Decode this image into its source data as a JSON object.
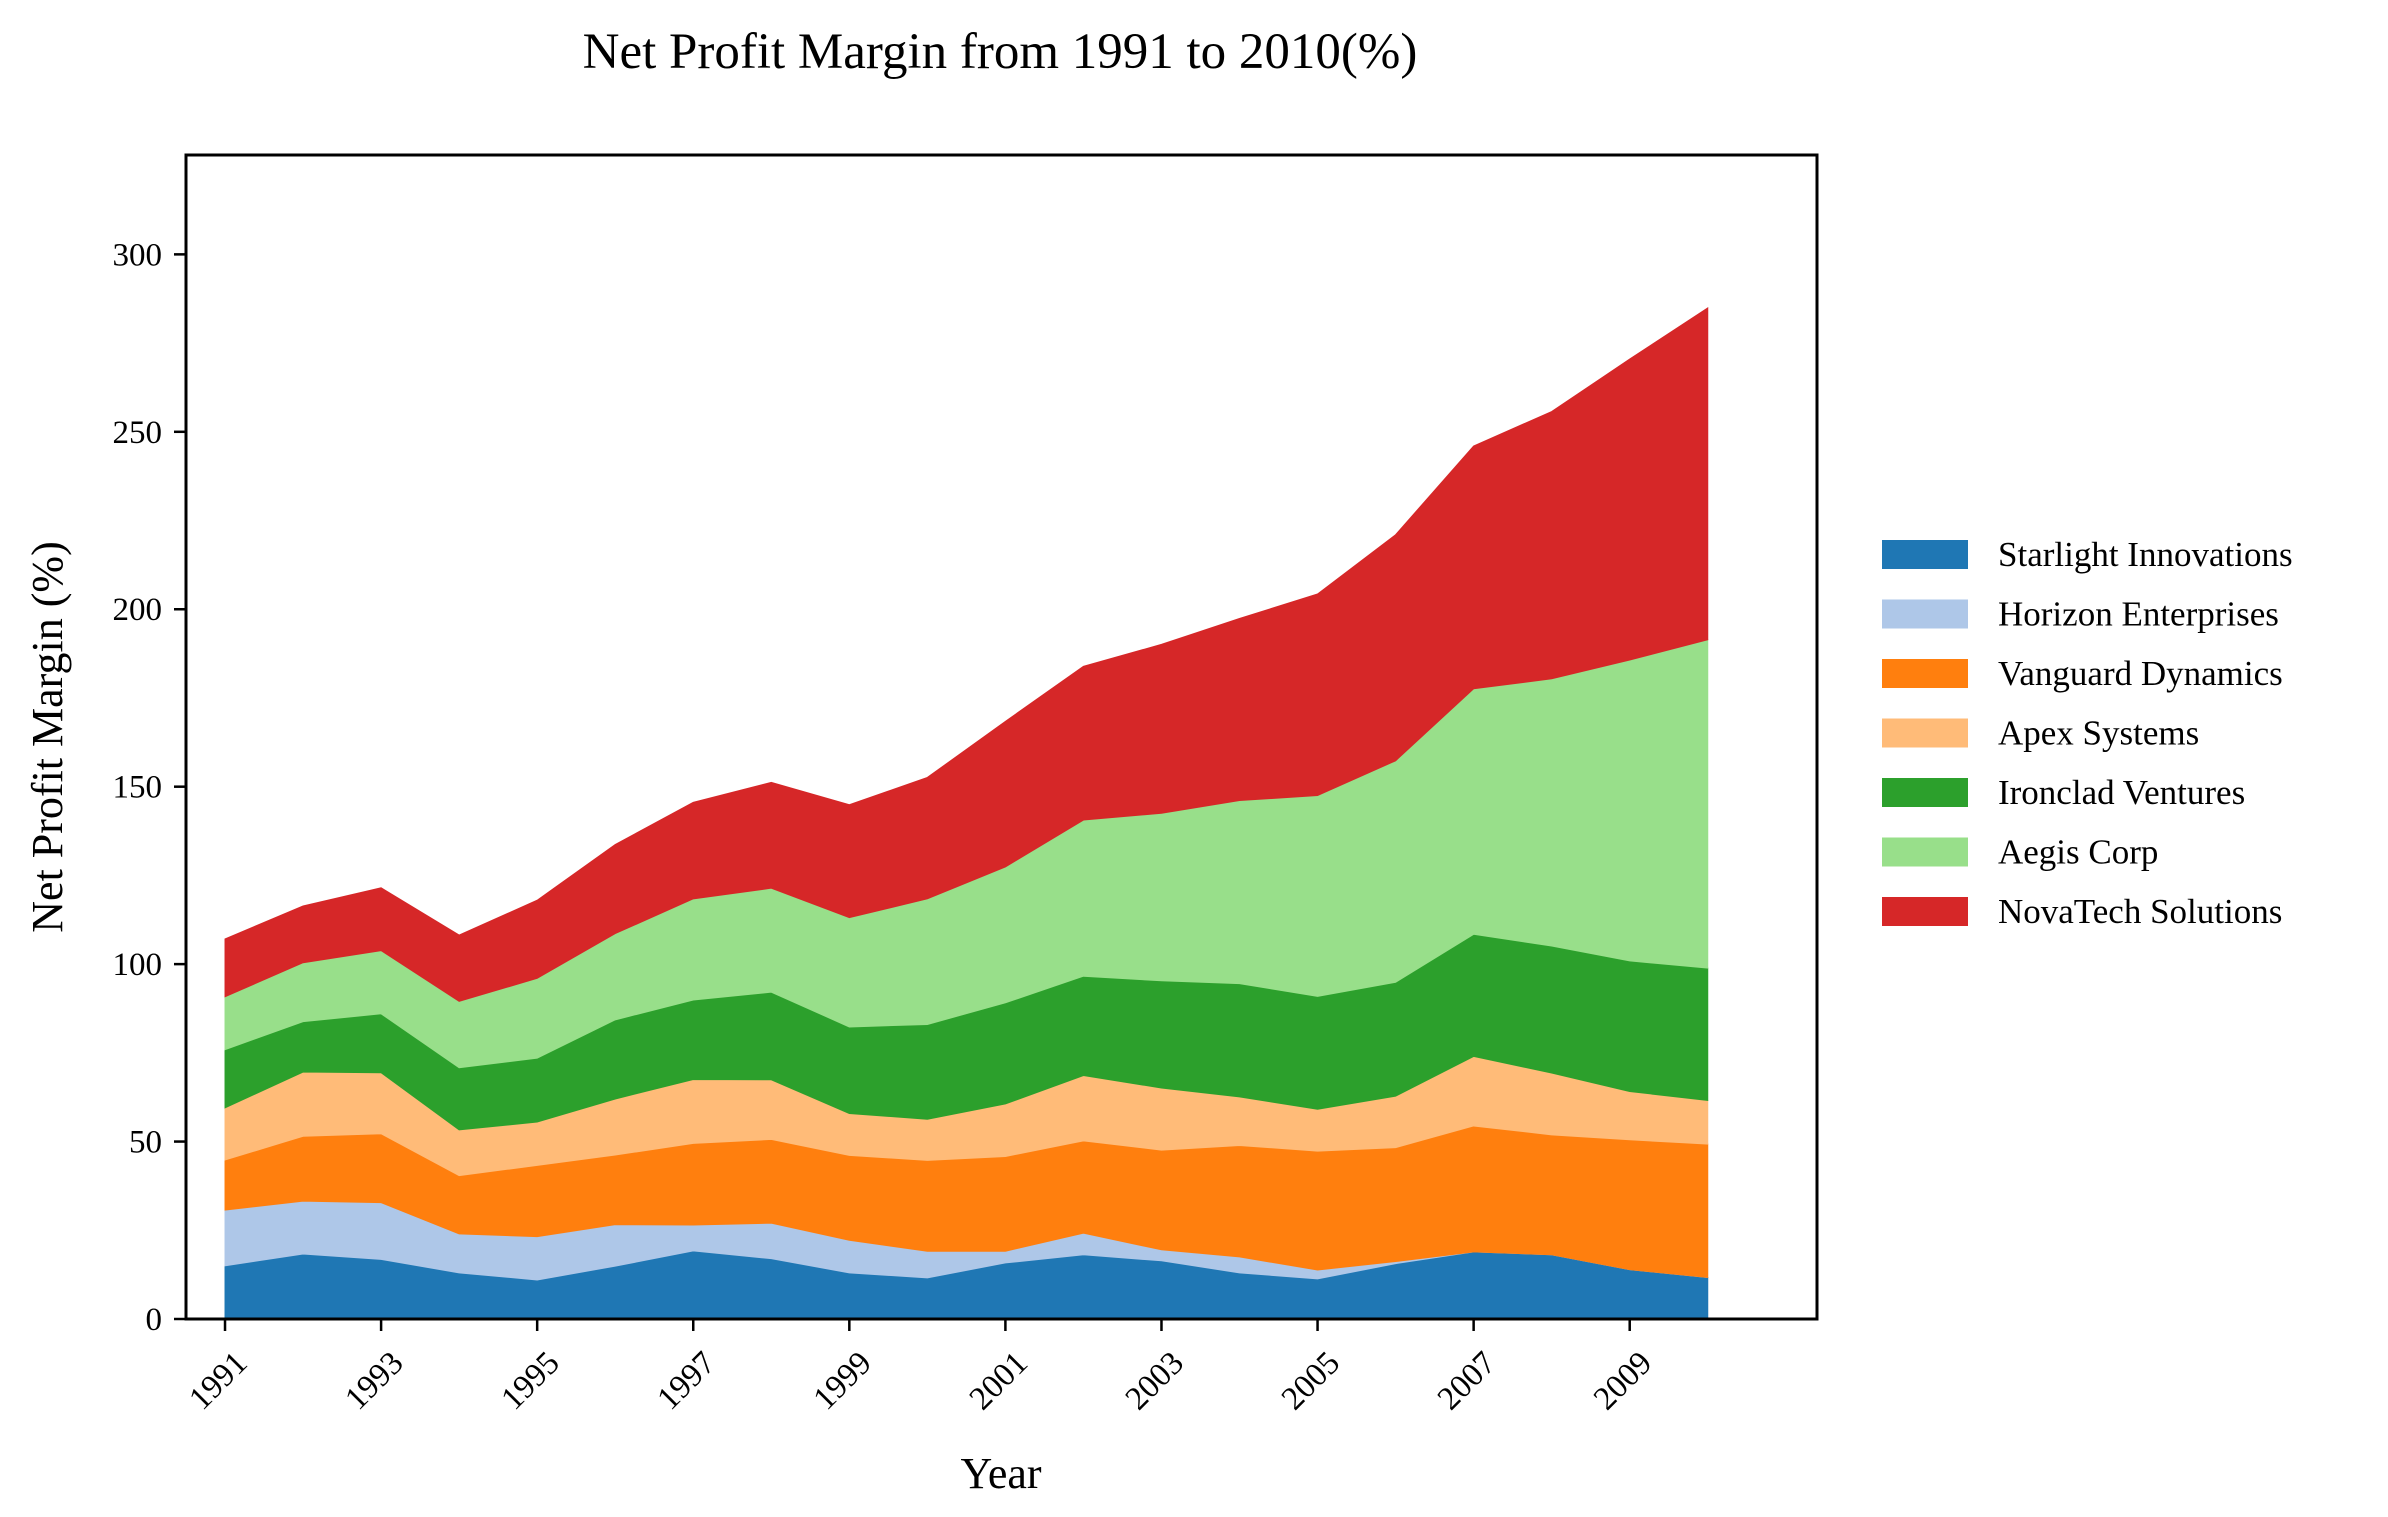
{
  "chart_data": {
    "type": "area",
    "stacked": true,
    "title": "Net Profit Margin from 1991 to 2010(%)",
    "xlabel": "Year",
    "ylabel": "Net Profit Margin (%)",
    "x": [
      1991,
      1992,
      1993,
      1994,
      1995,
      1996,
      1997,
      1998,
      1999,
      2000,
      2001,
      2002,
      2003,
      2004,
      2005,
      2006,
      2007,
      2008,
      2009,
      2010
    ],
    "xticks": [
      "1991",
      "1993",
      "1995",
      "1997",
      "1999",
      "2001",
      "2003",
      "2005",
      "2007",
      "2009"
    ],
    "xlim": [
      1990.5,
      2011.4
    ],
    "yticks": [
      "0",
      "50",
      "100",
      "150",
      "200",
      "250",
      "300"
    ],
    "ylim": [
      0,
      328
    ],
    "grid": false,
    "legend_position": "right",
    "series": [
      {
        "name": "Starlight Innovations",
        "color": "#1f77b4",
        "values": [
          15.0,
          18.3,
          16.8,
          13.0,
          11.0,
          14.9,
          19.2,
          17.0,
          13.0,
          11.6,
          15.8,
          18.1,
          16.4,
          13.0,
          11.3,
          15.6,
          18.9,
          18.1,
          13.9,
          11.7
        ]
      },
      {
        "name": "Horizon Enterprises",
        "color": "#aec7e8",
        "values": [
          15.7,
          14.9,
          16.0,
          11.0,
          12.2,
          11.7,
          7.3,
          10.0,
          9.2,
          7.5,
          3.3,
          6.1,
          3.1,
          4.5,
          2.5,
          0.6,
          0.0,
          0.0,
          0.0,
          0.0
        ]
      },
      {
        "name": "Vanguard Dynamics",
        "color": "#ff7f0e",
        "values": [
          14.1,
          18.3,
          19.4,
          16.4,
          20.1,
          19.6,
          23.0,
          23.6,
          23.9,
          25.6,
          26.7,
          26.0,
          28.1,
          31.4,
          33.5,
          32.1,
          35.5,
          33.8,
          36.6,
          37.6
        ]
      },
      {
        "name": "Apex Systems",
        "color": "#ffbb78",
        "values": [
          14.7,
          18.1,
          17.2,
          12.9,
          12.2,
          15.8,
          18.0,
          16.8,
          11.8,
          11.6,
          14.8,
          18.4,
          17.5,
          13.7,
          11.8,
          14.5,
          19.6,
          17.4,
          13.6,
          12.3
        ]
      },
      {
        "name": "Ironclad Ventures",
        "color": "#2ca02c",
        "values": [
          16.4,
          14.2,
          16.6,
          17.5,
          18.0,
          22.3,
          22.4,
          24.7,
          24.4,
          26.7,
          28.5,
          28.0,
          30.2,
          31.9,
          31.8,
          32.1,
          34.4,
          35.8,
          36.8,
          37.3
        ]
      },
      {
        "name": "Aegis Corp",
        "color": "#98df8a",
        "values": [
          14.9,
          16.6,
          17.8,
          18.7,
          22.5,
          24.3,
          28.5,
          29.3,
          30.8,
          35.4,
          38.3,
          44.0,
          47.2,
          51.6,
          56.6,
          62.4,
          69.2,
          75.3,
          84.8,
          92.5
        ]
      },
      {
        "name": "NovaTech Solutions",
        "color": "#d62728",
        "values": [
          16.3,
          16.0,
          17.7,
          18.7,
          22.0,
          25.1,
          27.2,
          29.8,
          31.8,
          34.2,
          41.0,
          43.3,
          47.6,
          51.3,
          56.8,
          63.7,
          68.4,
          75.3,
          84.8,
          93.5
        ]
      }
    ]
  }
}
